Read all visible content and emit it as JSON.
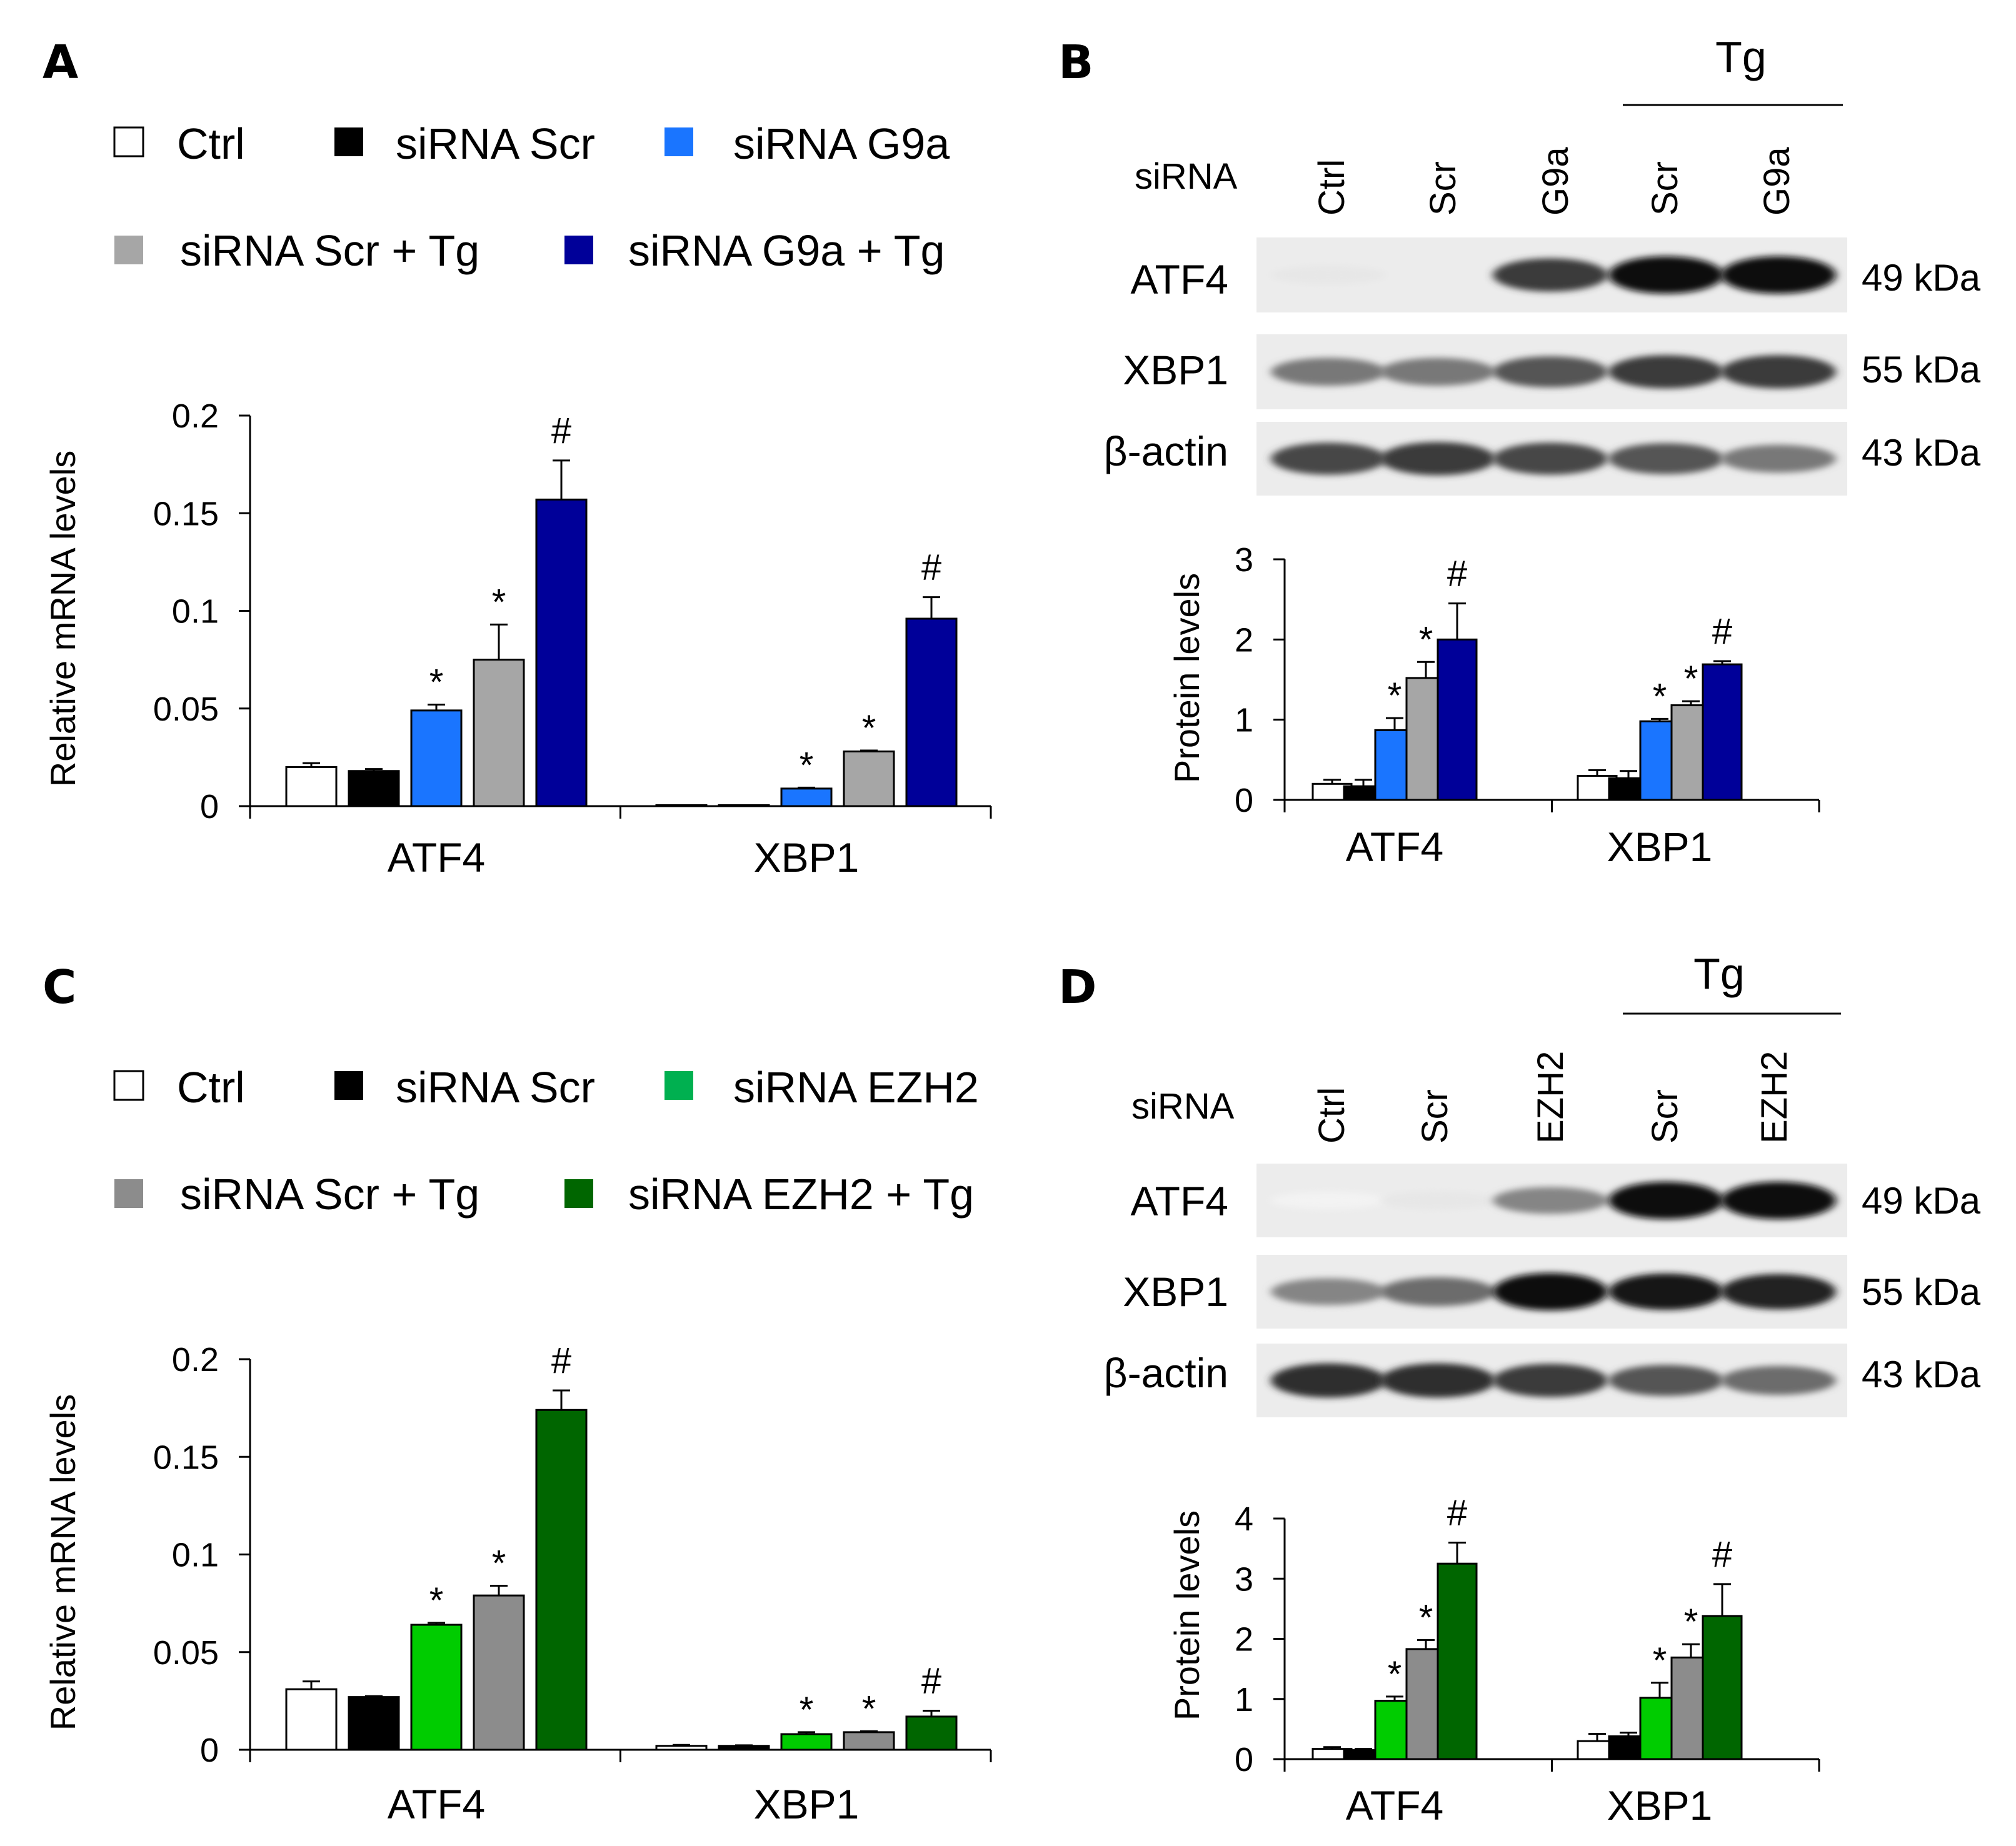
{
  "chart_data": [
    {
      "panel": "A",
      "type": "bar",
      "title": "",
      "xlabel": "",
      "ylabel": "Relative mRNA levels",
      "ylim": [
        0,
        0.2
      ],
      "yticks": [
        "0",
        "0.05",
        "0.1",
        "0.15",
        "0.2"
      ],
      "categories": [
        "ATF4",
        "XBP1"
      ],
      "legend": [
        [
          "Ctrl",
          "siRNA Scr",
          "siRNA G9a"
        ],
        [
          "siRNA Scr + Tg",
          "siRNA G9a + Tg"
        ]
      ],
      "series": [
        {
          "name": "Ctrl",
          "color": "#ffffff",
          "values": [
            0.02,
            0.0005
          ],
          "errors": [
            0.002,
            0.0002
          ],
          "marks": [
            "",
            ""
          ]
        },
        {
          "name": "siRNA Scr",
          "color": "#000000",
          "values": [
            0.018,
            0.0005
          ],
          "errors": [
            0.001,
            0.0002
          ],
          "marks": [
            "",
            ""
          ]
        },
        {
          "name": "siRNA G9a",
          "color": "#1a75ff",
          "values": [
            0.049,
            0.009
          ],
          "errors": [
            0.003,
            0.0005
          ],
          "marks": [
            "*",
            "*"
          ]
        },
        {
          "name": "siRNA Scr + Tg",
          "color": "#a6a6a6",
          "values": [
            0.075,
            0.028
          ],
          "errors": [
            0.018,
            0.0005
          ],
          "marks": [
            "*",
            "*"
          ]
        },
        {
          "name": "siRNA G9a + Tg",
          "color": "#000099",
          "values": [
            0.157,
            0.096
          ],
          "errors": [
            0.02,
            0.011
          ],
          "marks": [
            "#",
            "#"
          ]
        }
      ]
    },
    {
      "panel": "B",
      "type": "bar",
      "title": "",
      "xlabel": "",
      "ylabel": "Protein levels",
      "ylim": [
        0,
        3
      ],
      "yticks": [
        "0",
        "1",
        "2",
        "3"
      ],
      "categories": [
        "ATF4",
        "XBP1"
      ],
      "series": [
        {
          "name": "Ctrl",
          "color": "#ffffff",
          "values": [
            0.2,
            0.3
          ],
          "errors": [
            0.05,
            0.07
          ],
          "marks": [
            "",
            ""
          ]
        },
        {
          "name": "siRNA Scr",
          "color": "#000000",
          "values": [
            0.17,
            0.27
          ],
          "errors": [
            0.08,
            0.09
          ],
          "marks": [
            "",
            ""
          ]
        },
        {
          "name": "siRNA G9a",
          "color": "#1a75ff",
          "values": [
            0.87,
            0.98
          ],
          "errors": [
            0.15,
            0.03
          ],
          "marks": [
            "*",
            "*"
          ]
        },
        {
          "name": "siRNA Scr + Tg",
          "color": "#a6a6a6",
          "values": [
            1.52,
            1.18
          ],
          "errors": [
            0.2,
            0.05
          ],
          "marks": [
            "*",
            "*"
          ]
        },
        {
          "name": "siRNA G9a + Tg",
          "color": "#000099",
          "values": [
            2.0,
            1.69
          ],
          "errors": [
            0.45,
            0.04
          ],
          "marks": [
            "#",
            "#"
          ]
        }
      ]
    },
    {
      "panel": "C",
      "type": "bar",
      "title": "",
      "xlabel": "",
      "ylabel": "Relative mRNA levels",
      "ylim": [
        0,
        0.2
      ],
      "yticks": [
        "0",
        "0.05",
        "0.1",
        "0.15",
        "0.2"
      ],
      "categories": [
        "ATF4",
        "XBP1"
      ],
      "legend": [
        [
          "Ctrl",
          "siRNA Scr",
          "siRNA EZH2"
        ],
        [
          "siRNA Scr + Tg",
          "siRNA EZH2 + Tg"
        ]
      ],
      "series": [
        {
          "name": "Ctrl",
          "color": "#ffffff",
          "values": [
            0.031,
            0.002
          ],
          "errors": [
            0.004,
            0.0005
          ],
          "marks": [
            "",
            ""
          ]
        },
        {
          "name": "siRNA Scr",
          "color": "#000000",
          "values": [
            0.027,
            0.002
          ],
          "errors": [
            0.0005,
            0.0003
          ],
          "marks": [
            "",
            ""
          ]
        },
        {
          "name": "siRNA EZH2",
          "color": "#00cc00",
          "values": [
            0.064,
            0.008
          ],
          "errors": [
            0.001,
            0.001
          ],
          "marks": [
            "*",
            "*"
          ]
        },
        {
          "name": "siRNA Scr + Tg",
          "color": "#8c8c8c",
          "values": [
            0.079,
            0.009
          ],
          "errors": [
            0.005,
            0.0005
          ],
          "marks": [
            "*",
            "*"
          ]
        },
        {
          "name": "siRNA EZH2 + Tg",
          "color": "#006600",
          "values": [
            0.174,
            0.017
          ],
          "errors": [
            0.01,
            0.003
          ],
          "marks": [
            "#",
            "#"
          ]
        }
      ]
    },
    {
      "panel": "D",
      "type": "bar",
      "title": "",
      "xlabel": "",
      "ylabel": "Protein levels",
      "ylim": [
        0,
        4
      ],
      "yticks": [
        "0",
        "1",
        "2",
        "3",
        "4"
      ],
      "categories": [
        "ATF4",
        "XBP1"
      ],
      "series": [
        {
          "name": "Ctrl",
          "color": "#ffffff",
          "values": [
            0.17,
            0.3
          ],
          "errors": [
            0.03,
            0.12
          ],
          "marks": [
            "",
            ""
          ]
        },
        {
          "name": "siRNA Scr",
          "color": "#000000",
          "values": [
            0.15,
            0.38
          ],
          "errors": [
            0.02,
            0.06
          ],
          "marks": [
            "",
            ""
          ]
        },
        {
          "name": "siRNA EZH2",
          "color": "#00cc00",
          "values": [
            0.97,
            1.02
          ],
          "errors": [
            0.07,
            0.25
          ],
          "marks": [
            "*",
            "*"
          ]
        },
        {
          "name": "siRNA Scr + Tg",
          "color": "#8c8c8c",
          "values": [
            1.83,
            1.69
          ],
          "errors": [
            0.15,
            0.22
          ],
          "marks": [
            "*",
            "*"
          ]
        },
        {
          "name": "siRNA EZH2 + Tg",
          "color": "#006600",
          "values": [
            3.25,
            2.38
          ],
          "errors": [
            0.35,
            0.53
          ],
          "marks": [
            "#",
            "#"
          ]
        }
      ]
    }
  ],
  "panels": {
    "A": {
      "letter": "A"
    },
    "B": {
      "letter": "B",
      "treatment_label": "Tg",
      "sirna_label": "siRNA",
      "lanes": [
        "Ctrl",
        "Scr",
        "G9a",
        "Scr",
        "G9a"
      ],
      "blots": [
        {
          "label": "ATF4",
          "kda": "49 kDa",
          "intensity": [
            0.1,
            0.0,
            0.8,
            1.0,
            1.0
          ]
        },
        {
          "label": "XBP1",
          "kda": "55 kDa",
          "intensity": [
            0.55,
            0.55,
            0.7,
            0.8,
            0.8
          ]
        },
        {
          "label": "β-actin",
          "kda": "43 kDa",
          "intensity": [
            0.75,
            0.8,
            0.75,
            0.7,
            0.55
          ]
        }
      ]
    },
    "C": {
      "letter": "C"
    },
    "D": {
      "letter": "D",
      "treatment_label": "Tg",
      "sirna_label": "siRNA",
      "lanes": [
        "Ctrl",
        "Scr",
        "EZH2",
        "Scr",
        "EZH2"
      ],
      "blots": [
        {
          "label": "ATF4",
          "kda": "49 kDa",
          "intensity": [
            0.05,
            0.1,
            0.5,
            1.0,
            1.0
          ]
        },
        {
          "label": "XBP1",
          "kda": "55 kDa",
          "intensity": [
            0.5,
            0.6,
            1.0,
            0.95,
            0.9
          ]
        },
        {
          "label": "β-actin",
          "kda": "43 kDa",
          "intensity": [
            0.85,
            0.85,
            0.8,
            0.7,
            0.6
          ]
        }
      ]
    }
  }
}
